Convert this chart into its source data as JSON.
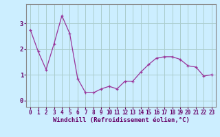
{
  "x": [
    0,
    1,
    2,
    3,
    4,
    5,
    6,
    7,
    8,
    9,
    10,
    11,
    12,
    13,
    14,
    15,
    16,
    17,
    18,
    19,
    20,
    21,
    22,
    23
  ],
  "y": [
    2.75,
    1.9,
    1.2,
    2.2,
    3.3,
    2.6,
    0.85,
    0.3,
    0.3,
    0.45,
    0.55,
    0.45,
    0.75,
    0.75,
    1.1,
    1.4,
    1.65,
    1.7,
    1.7,
    1.6,
    1.35,
    1.3,
    0.95,
    1.0
  ],
  "line_color": "#993399",
  "marker": "+",
  "marker_size": 3,
  "bg_color": "#cceeff",
  "grid_color": "#aacccc",
  "xlabel": "Windchill (Refroidissement éolien,°C)",
  "xlabel_fontsize": 6.5,
  "tick_fontsize": 5.5,
  "ytick_labels": [
    "0",
    "1",
    "2",
    "3"
  ],
  "ytick_vals": [
    0,
    1,
    2,
    3
  ],
  "ylim": [
    -0.25,
    3.75
  ],
  "xlim": [
    -0.5,
    23.5
  ],
  "label_color": "#660066",
  "spine_color": "#888888"
}
